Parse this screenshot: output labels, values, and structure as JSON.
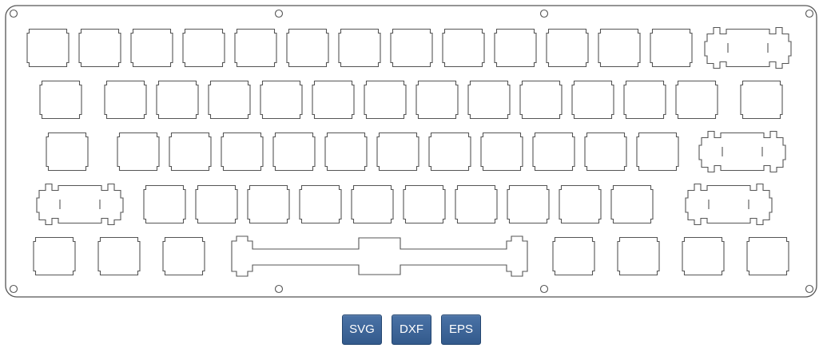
{
  "colors": {
    "outline": "#555555",
    "button_bg": "#3d6699",
    "button_text": "#ffffff"
  },
  "plate": {
    "rows": [
      [
        "key",
        "key",
        "key",
        "key",
        "key",
        "key",
        "key",
        "key",
        "key",
        "key",
        "key",
        "key",
        "key",
        "stab-2u"
      ],
      [
        "key",
        "key",
        "key",
        "key",
        "key",
        "key",
        "key",
        "key",
        "key",
        "key",
        "key",
        "key",
        "key",
        "key"
      ],
      [
        "key",
        "key",
        "key",
        "key",
        "key",
        "key",
        "key",
        "key",
        "key",
        "key",
        "key",
        "key",
        "stab-2u"
      ],
      [
        "stab-2u",
        "key",
        "key",
        "key",
        "key",
        "key",
        "key",
        "key",
        "key",
        "key",
        "stab-2u"
      ],
      [
        "key",
        "key",
        "key",
        "spacebar",
        "key",
        "key",
        "key",
        "key"
      ]
    ]
  },
  "export": {
    "buttons": [
      {
        "id": "svg",
        "label": "SVG"
      },
      {
        "id": "dxf",
        "label": "DXF"
      },
      {
        "id": "eps",
        "label": "EPS"
      }
    ]
  }
}
